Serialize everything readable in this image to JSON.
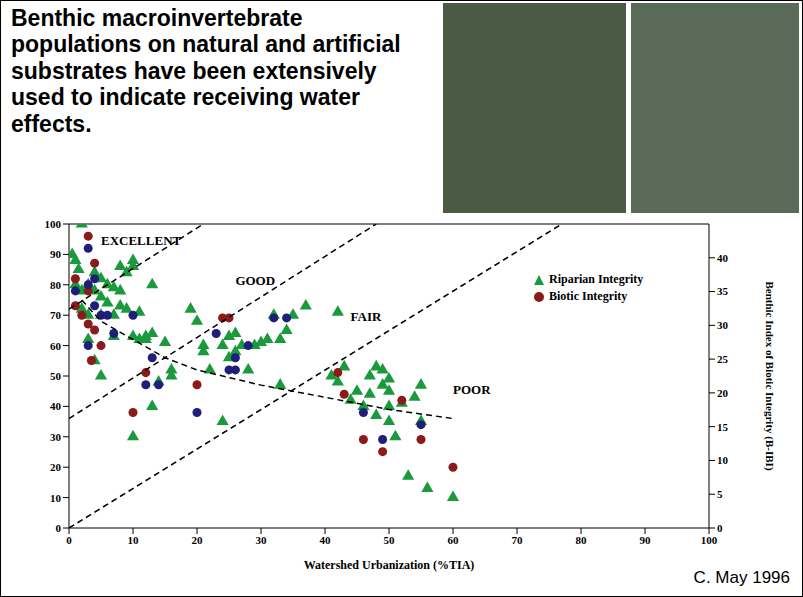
{
  "chart_data": {
    "type": "scatter",
    "title": "Benthic macroinvertebrate populations on natural and artificial substrates have been extensively used to indicate receiving water effects.",
    "caption": "C. May 1996",
    "x_label": "Watershed Urbanization (%TIA)",
    "y2_label": "Benthic Index of Biotic Integrity (B-IBI)",
    "xlim": [
      0,
      100
    ],
    "xticks": [
      0,
      10,
      20,
      30,
      40,
      50,
      60,
      70,
      80,
      90,
      100
    ],
    "ylim": [
      0,
      100
    ],
    "yticks": [
      0,
      10,
      20,
      30,
      40,
      50,
      60,
      70,
      80,
      90,
      100
    ],
    "y2lim": [
      0,
      45
    ],
    "y2ticks": [
      0,
      5,
      10,
      15,
      20,
      25,
      30,
      35,
      40
    ],
    "grid": false,
    "legend": "upper right",
    "series": [
      {
        "name": "Riparian Integrity",
        "type": "scatter",
        "color": "#1a9a3c",
        "marker": "triangle",
        "x": [
          0.5,
          1,
          1.5,
          2,
          1,
          2,
          2,
          3,
          3,
          4,
          4,
          5,
          5,
          5,
          6,
          6,
          7,
          7,
          8,
          8,
          8,
          9,
          9,
          10,
          10,
          10,
          10,
          11,
          11,
          12,
          12,
          13,
          13,
          13,
          14,
          15,
          16,
          16,
          19,
          20,
          21,
          21,
          22,
          24,
          24,
          25,
          25,
          26,
          26,
          27,
          28,
          29,
          30,
          31,
          32,
          33,
          33,
          34,
          35,
          37,
          42,
          41,
          42,
          43,
          44,
          45,
          46,
          47,
          47,
          48,
          48,
          49,
          49,
          50,
          50,
          50,
          50,
          51,
          52,
          53,
          54,
          55,
          55,
          56,
          60,
          5,
          3,
          4,
          7
        ],
        "values": [
          90,
          88,
          85,
          100,
          80,
          78,
          72,
          80,
          70,
          84,
          78,
          82,
          76,
          70,
          80,
          74,
          79,
          70,
          86,
          78,
          73,
          72,
          84,
          88,
          86,
          63,
          30,
          71,
          62,
          63,
          62,
          80,
          64,
          40,
          48,
          61,
          52,
          50,
          72,
          68,
          58,
          60,
          52,
          35,
          60,
          63,
          56,
          64,
          58,
          60,
          52,
          60,
          61,
          62,
          70,
          47,
          62,
          65,
          70,
          73,
          71,
          50,
          48,
          53,
          42,
          45,
          40,
          50,
          44,
          53,
          37,
          47,
          52,
          35,
          40,
          49,
          45,
          30,
          41,
          17,
          43,
          35,
          47,
          13,
          10,
          50,
          62,
          55,
          63
        ]
      },
      {
        "name": "Biotic Integrity",
        "type": "scatter",
        "color": "#8b1a1a",
        "marker": "circle",
        "axis": "y2",
        "x": [
          1,
          1,
          3,
          3,
          2,
          3,
          4,
          4,
          3.5,
          5,
          10,
          12,
          20,
          24,
          25,
          42,
          43,
          46,
          49,
          52,
          55,
          60,
          1,
          3,
          3,
          3,
          4,
          4,
          5,
          6,
          7,
          10,
          12,
          13,
          14,
          20,
          23,
          25,
          26,
          26,
          28,
          32,
          34,
          46,
          49,
          55
        ],
        "values": [
          36.9,
          32.9,
          43.2,
          35.1,
          31.5,
          30.2,
          39.2,
          29.3,
          24.8,
          27,
          17.1,
          23,
          21.2,
          31.1,
          31.1,
          23,
          19.8,
          13.1,
          11.3,
          18.9,
          13.1,
          9,
          35.1,
          41.4,
          36,
          27,
          36.9,
          32.9,
          31.5,
          31.5,
          28.8,
          31.5,
          21.2,
          25.2,
          21.2,
          17.1,
          28.8,
          23.4,
          25.2,
          23.4,
          27,
          31.1,
          31.1,
          17.1,
          13.1,
          15.3
        ],
        "colors": [
          "#8b1a1a",
          "#8b1a1a",
          "#8b1a1a",
          "#8b1a1a",
          "#8b1a1a",
          "#8b1a1a",
          "#8b1a1a",
          "#8b1a1a",
          "#8b1a1a",
          "#8b1a1a",
          "#8b1a1a",
          "#8b1a1a",
          "#8b1a1a",
          "#8b1a1a",
          "#8b1a1a",
          "#8b1a1a",
          "#8b1a1a",
          "#8b1a1a",
          "#8b1a1a",
          "#8b1a1a",
          "#8b1a1a",
          "#8b1a1a",
          "#1f1f7a",
          "#1f1f7a",
          "#1f1f7a",
          "#1f1f7a",
          "#1f1f7a",
          "#1f1f7a",
          "#1f1f7a",
          "#1f1f7a",
          "#1f1f7a",
          "#1f1f7a",
          "#1f1f7a",
          "#1f1f7a",
          "#1f1f7a",
          "#1f1f7a",
          "#1f1f7a",
          "#1f1f7a",
          "#1f1f7a",
          "#1f1f7a",
          "#1f1f7a",
          "#1f1f7a",
          "#1f1f7a",
          "#1f1f7a",
          "#1f1f7a",
          "#1f1f7a"
        ]
      },
      {
        "type": "line",
        "color": "#000000",
        "line_style": "dashed",
        "x": [
          0,
          21
        ],
        "values": [
          72,
          100
        ]
      },
      {
        "type": "line",
        "color": "#000000",
        "line_style": "dashed",
        "x": [
          0,
          48
        ],
        "values": [
          36,
          100
        ]
      },
      {
        "type": "line",
        "color": "#000000",
        "line_style": "dashed",
        "x": [
          0,
          77
        ],
        "values": [
          0,
          100
        ]
      },
      {
        "type": "line",
        "color": "#000000",
        "line_style": "dashed",
        "x": [
          2,
          5,
          10,
          15,
          20,
          30,
          40,
          50,
          60
        ],
        "values": [
          75,
          68,
          62,
          56,
          52,
          47,
          43,
          39,
          36
        ]
      }
    ],
    "annotations": [
      {
        "text": "EXCELLENT",
        "x": 5,
        "y": 94
      },
      {
        "text": "GOOD",
        "x": 26,
        "y": 81
      },
      {
        "text": "FAIR",
        "x": 44,
        "y": 69
      },
      {
        "text": "POOR",
        "x": 60,
        "y": 45
      }
    ]
  }
}
